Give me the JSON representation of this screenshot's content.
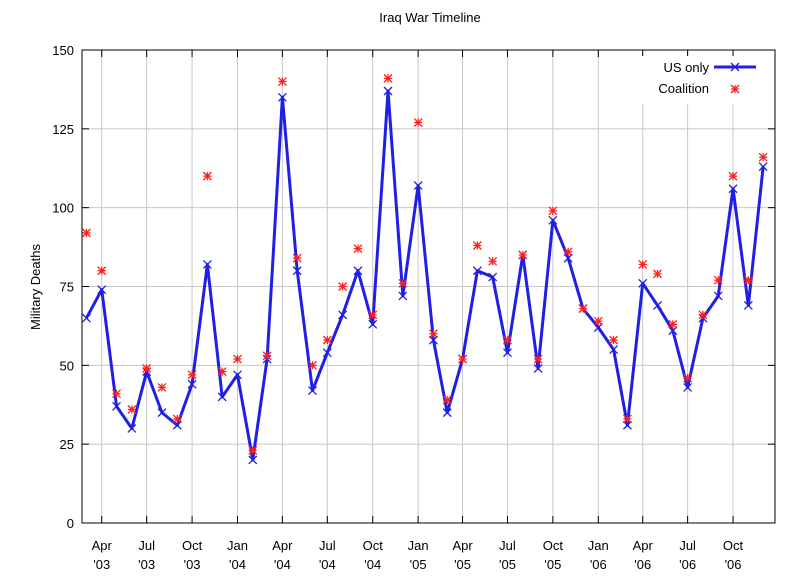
{
  "chart_data": {
    "type": "line",
    "title": "Iraq War Timeline",
    "xlabel": "",
    "ylabel": "Military Deaths",
    "ylim": [
      0,
      150
    ],
    "yticks": [
      0,
      25,
      50,
      75,
      100,
      125,
      150
    ],
    "x_start": "2003-03",
    "xlim": [
      "2003-02-20",
      "2006-12-25"
    ],
    "x_ticks": [
      {
        "date": "2003-04-01",
        "month": "Apr",
        "year": "'03"
      },
      {
        "date": "2003-07-01",
        "month": "Jul",
        "year": "'03"
      },
      {
        "date": "2003-10-01",
        "month": "Oct",
        "year": "'03"
      },
      {
        "date": "2004-01-01",
        "month": "Jan",
        "year": "'04"
      },
      {
        "date": "2004-04-01",
        "month": "Apr",
        "year": "'04"
      },
      {
        "date": "2004-07-01",
        "month": "Jul",
        "year": "'04"
      },
      {
        "date": "2004-10-01",
        "month": "Oct",
        "year": "'04"
      },
      {
        "date": "2005-01-01",
        "month": "Jan",
        "year": "'05"
      },
      {
        "date": "2005-04-01",
        "month": "Apr",
        "year": "'05"
      },
      {
        "date": "2005-07-01",
        "month": "Jul",
        "year": "'05"
      },
      {
        "date": "2005-10-01",
        "month": "Oct",
        "year": "'05"
      },
      {
        "date": "2006-01-01",
        "month": "Jan",
        "year": "'06"
      },
      {
        "date": "2006-04-01",
        "month": "Apr",
        "year": "'06"
      },
      {
        "date": "2006-07-01",
        "month": "Jul",
        "year": "'06"
      },
      {
        "date": "2006-10-01",
        "month": "Oct",
        "year": "'06"
      }
    ],
    "grid": true,
    "legend_position": "top-right",
    "series": [
      {
        "name": "US only",
        "style": "line-with-x-markers",
        "color": "#1f1fe6",
        "values": [
          65,
          74,
          37,
          30,
          48,
          35,
          31,
          44,
          82,
          40,
          47,
          20,
          52,
          135,
          80,
          42,
          54,
          66,
          80,
          63,
          137,
          72,
          107,
          58,
          35,
          52,
          80,
          78,
          54,
          85,
          49,
          96,
          84,
          68,
          62,
          55,
          31,
          76,
          69,
          61,
          43,
          65,
          72,
          106,
          69,
          113
        ]
      },
      {
        "name": "Coalition",
        "style": "star-markers",
        "color": "#ff1f1f",
        "values": [
          92,
          80,
          41,
          36,
          49,
          43,
          33,
          47,
          110,
          48,
          52,
          23,
          53,
          140,
          84,
          50,
          58,
          75,
          87,
          66,
          141,
          76,
          127,
          60,
          39,
          52,
          88,
          83,
          58,
          85,
          52,
          99,
          86,
          68,
          64,
          58,
          33,
          82,
          79,
          63,
          46,
          66,
          77,
          110,
          77,
          116
        ]
      }
    ]
  }
}
